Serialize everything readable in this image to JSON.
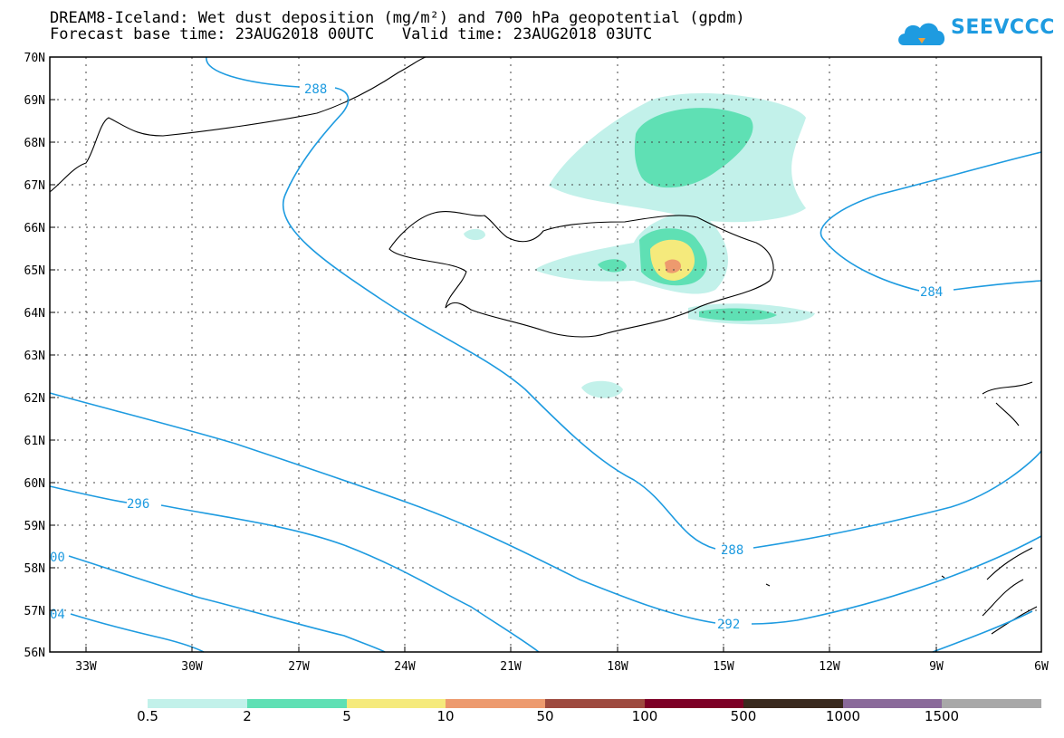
{
  "title": {
    "line1": "DREAM8-Iceland: Wet dust deposition (mg/m²) and 700 hPa geopotential (gpdm)",
    "line2": "Forecast base time: 23AUG2018 00UTC   Valid time: 23AUG2018 03UTC"
  },
  "logo": {
    "text": "SEEVCCC",
    "icon": "cloud-icon"
  },
  "axes": {
    "lat_labels": [
      "70N",
      "69N",
      "68N",
      "67N",
      "66N",
      "65N",
      "64N",
      "63N",
      "62N",
      "61N",
      "60N",
      "59N",
      "58N",
      "57N",
      "56N"
    ],
    "lon_labels": [
      "33W",
      "30W",
      "27W",
      "24W",
      "21W",
      "18W",
      "15W",
      "12W",
      "9W",
      "6W"
    ]
  },
  "contour_labels": [
    "288",
    "284",
    "296",
    "288",
    "292",
    "00",
    "04"
  ],
  "colorbar": {
    "labels": [
      "0.5",
      "2",
      "5",
      "10",
      "50",
      "100",
      "500",
      "1000",
      "1500"
    ],
    "colors": [
      "#c2f1ea",
      "#5fe0b4",
      "#f5ea7c",
      "#ed9a6e",
      "#9e4a3f",
      "#7d0026",
      "#3a2a1e",
      "#8a6a9a",
      "#a8a8a8"
    ]
  },
  "colors": {
    "contour": "#1e9be0",
    "coast": "#000000"
  }
}
